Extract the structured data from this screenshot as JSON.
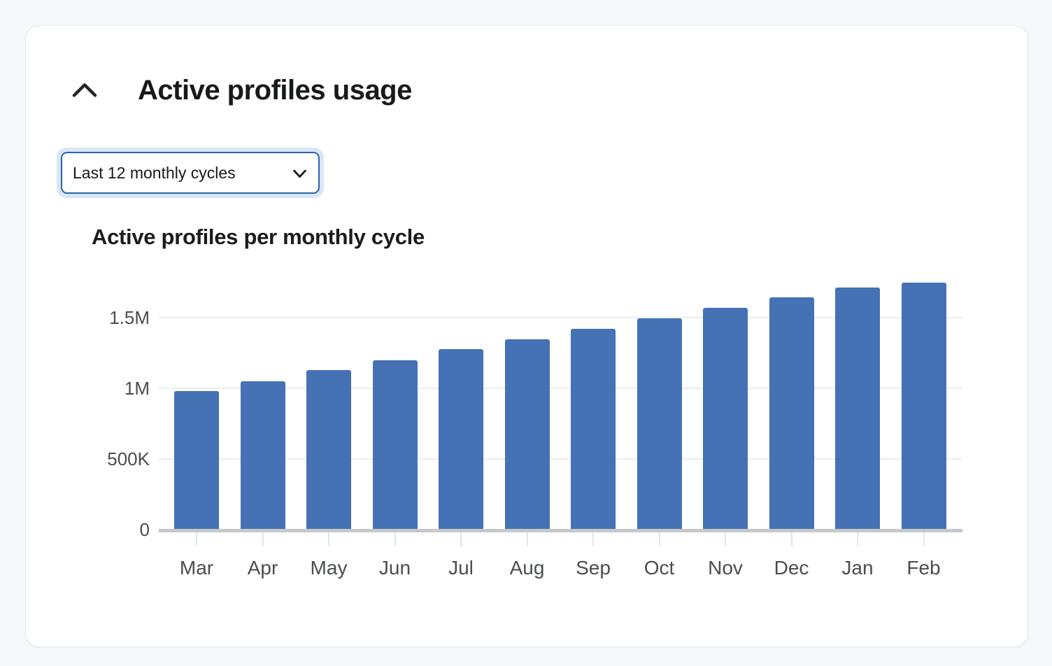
{
  "header": {
    "title": "Active profiles usage",
    "collapse_icon": "chevron-up"
  },
  "filter": {
    "selected": "Last 12 monthly cycles",
    "icon": "chevron-down",
    "accent_color": "#2a63b0",
    "focus_ring_color": "#d9e6f7"
  },
  "chart_data": {
    "type": "bar",
    "title": "Active profiles per monthly cycle",
    "categories": [
      "Mar",
      "Apr",
      "May",
      "Jun",
      "Jul",
      "Aug",
      "Sep",
      "Oct",
      "Nov",
      "Dec",
      "Jan",
      "Feb"
    ],
    "values": [
      980000,
      1050000,
      1130000,
      1200000,
      1275000,
      1345000,
      1420000,
      1495000,
      1570000,
      1645000,
      1715000,
      1750000
    ],
    "series_name": "Active profiles",
    "xlabel": "",
    "ylabel": "",
    "y_ticks": [
      {
        "label": "0",
        "value": 0
      },
      {
        "label": "500K",
        "value": 500000
      },
      {
        "label": "1M",
        "value": 1000000
      },
      {
        "label": "1.5M",
        "value": 1500000
      }
    ],
    "ylim": [
      0,
      1820000
    ],
    "grid": true,
    "legend": false,
    "bar_color": "#4472b4",
    "gridline_color": "#ebedef",
    "axis_color": "#c6c8ca"
  }
}
